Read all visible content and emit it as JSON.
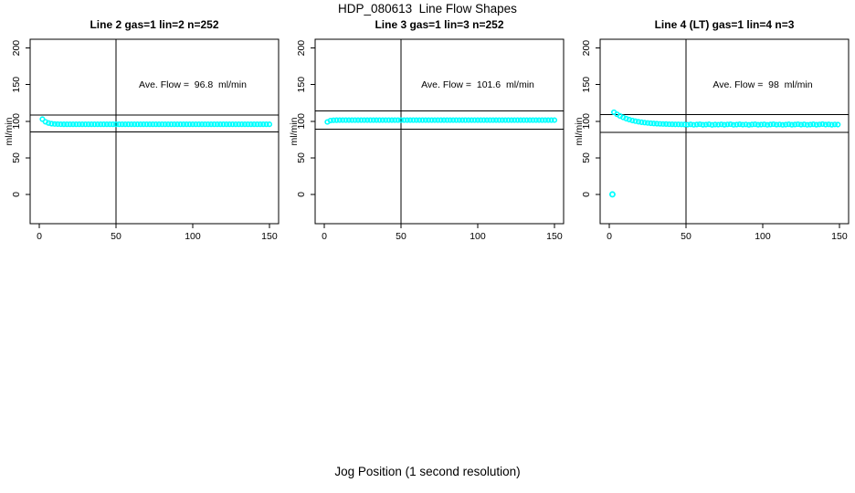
{
  "figure": {
    "title": "HDP_080613  Line Flow Shapes",
    "xlabel": "Jog Position (1 second resolution)",
    "background": "#ffffff",
    "point_color": "#00ffff",
    "axis_color": "#000000"
  },
  "chart_data": [
    {
      "type": "scatter",
      "title": "Line 2 gas=1 lin=2 n=252",
      "ylabel": "ml/min",
      "annotation": "Ave. Flow =  96.8  ml/min",
      "ave_flow": 96.8,
      "annotation_xy": [
        100,
        150
      ],
      "xlim": [
        -6,
        156
      ],
      "ylim": [
        -40,
        212
      ],
      "xticks": [
        0,
        50,
        100,
        150
      ],
      "yticks": [
        0,
        50,
        100,
        150,
        200
      ],
      "vline_x": 50,
      "ref_lines_y": [
        108.4,
        85.2
      ],
      "x": [
        2,
        4,
        6,
        8,
        10,
        12,
        14,
        16,
        18,
        20,
        22,
        24,
        26,
        28,
        30,
        32,
        34,
        36,
        38,
        40,
        42,
        44,
        46,
        48,
        50,
        52,
        54,
        56,
        58,
        60,
        62,
        64,
        66,
        68,
        70,
        72,
        74,
        76,
        78,
        80,
        82,
        84,
        86,
        88,
        90,
        92,
        94,
        96,
        98,
        100,
        102,
        104,
        106,
        108,
        110,
        112,
        114,
        116,
        118,
        120,
        122,
        124,
        126,
        128,
        130,
        132,
        134,
        136,
        138,
        140,
        142,
        144,
        146,
        148,
        150
      ],
      "y": [
        102.8,
        99.2,
        97.5,
        96.6,
        96.2,
        96.0,
        95.9,
        95.8,
        95.8,
        95.8,
        95.8,
        95.8,
        95.8,
        95.8,
        95.8,
        95.8,
        95.8,
        95.8,
        95.8,
        95.8,
        95.8,
        95.8,
        95.8,
        95.8,
        95.8,
        95.8,
        95.8,
        95.8,
        95.8,
        95.8,
        95.8,
        95.8,
        95.8,
        95.8,
        95.8,
        95.8,
        95.8,
        95.8,
        95.8,
        95.8,
        95.8,
        95.8,
        95.8,
        95.8,
        95.8,
        95.8,
        95.8,
        95.8,
        95.8,
        95.8,
        95.8,
        95.8,
        95.8,
        95.8,
        95.8,
        95.8,
        95.8,
        95.8,
        95.8,
        95.8,
        95.8,
        95.8,
        95.8,
        95.8,
        95.8,
        95.8,
        95.8,
        95.8,
        95.8,
        95.8,
        95.8,
        95.8,
        95.8,
        95.8,
        95.8
      ],
      "outliers": []
    },
    {
      "type": "scatter",
      "title": "Line 3 gas=1 lin=3 n=252",
      "ylabel": "ml/min",
      "annotation": "Ave. Flow =  101.6  ml/min",
      "ave_flow": 101.6,
      "annotation_xy": [
        100,
        150
      ],
      "xlim": [
        -6,
        156
      ],
      "ylim": [
        -40,
        212
      ],
      "xticks": [
        0,
        50,
        100,
        150
      ],
      "yticks": [
        0,
        50,
        100,
        150,
        200
      ],
      "vline_x": 50,
      "ref_lines_y": [
        113.8,
        89.4
      ],
      "x": [
        2,
        4,
        6,
        8,
        10,
        12,
        14,
        16,
        18,
        20,
        22,
        24,
        26,
        28,
        30,
        32,
        34,
        36,
        38,
        40,
        42,
        44,
        46,
        48,
        50,
        52,
        54,
        56,
        58,
        60,
        62,
        64,
        66,
        68,
        70,
        72,
        74,
        76,
        78,
        80,
        82,
        84,
        86,
        88,
        90,
        92,
        94,
        96,
        98,
        100,
        102,
        104,
        106,
        108,
        110,
        112,
        114,
        116,
        118,
        120,
        122,
        124,
        126,
        128,
        130,
        132,
        134,
        136,
        138,
        140,
        142,
        144,
        146,
        148,
        150
      ],
      "y": [
        99.0,
        100.9,
        101.3,
        101.4,
        101.5,
        101.5,
        101.5,
        101.5,
        101.5,
        101.5,
        101.5,
        101.5,
        101.5,
        101.5,
        101.5,
        101.5,
        101.5,
        101.5,
        101.5,
        101.5,
        101.5,
        101.5,
        101.5,
        101.5,
        101.5,
        101.5,
        101.5,
        101.5,
        101.5,
        101.5,
        101.5,
        101.5,
        101.5,
        101.5,
        101.5,
        101.5,
        101.5,
        101.5,
        101.5,
        101.5,
        101.5,
        101.5,
        101.5,
        101.5,
        101.5,
        101.5,
        101.5,
        101.5,
        101.5,
        101.5,
        101.5,
        101.5,
        101.5,
        101.5,
        101.5,
        101.5,
        101.5,
        101.5,
        101.5,
        101.5,
        101.5,
        101.5,
        101.5,
        101.5,
        101.5,
        101.5,
        101.5,
        101.5,
        101.5,
        101.5,
        101.5,
        101.5,
        101.5,
        101.5,
        101.5
      ],
      "outliers": []
    },
    {
      "type": "scatter",
      "title": "Line 4 (LT) gas=1 lin=4 n=3",
      "ylabel": "ml/min",
      "annotation": "Ave. Flow =  98  ml/min",
      "ave_flow": 98,
      "annotation_xy": [
        100,
        150
      ],
      "xlim": [
        -6,
        156
      ],
      "ylim": [
        -40,
        212
      ],
      "xticks": [
        0,
        50,
        100,
        150
      ],
      "yticks": [
        0,
        50,
        100,
        150,
        200
      ],
      "vline_x": 50,
      "ref_lines_y": [
        108.8,
        85.0
      ],
      "x": [
        3,
        5,
        7,
        9,
        11,
        13,
        15,
        17,
        19,
        21,
        23,
        25,
        27,
        29,
        31,
        33,
        35,
        37,
        39,
        41,
        43,
        45,
        47,
        49,
        51,
        53,
        55,
        57,
        59,
        61,
        63,
        65,
        67,
        69,
        71,
        73,
        75,
        77,
        79,
        81,
        83,
        85,
        87,
        89,
        91,
        93,
        95,
        97,
        99,
        101,
        103,
        105,
        107,
        109,
        111,
        113,
        115,
        117,
        119,
        121,
        123,
        125,
        127,
        129,
        131,
        133,
        135,
        137,
        139,
        141,
        143,
        145,
        147,
        149
      ],
      "y": [
        112.3,
        109.5,
        107.1,
        105.2,
        103.5,
        102.2,
        101.0,
        100.1,
        99.3,
        98.6,
        98.1,
        97.6,
        97.2,
        96.9,
        96.6,
        96.4,
        96.2,
        96.1,
        95.9,
        95.8,
        95.7,
        95.7,
        95.6,
        95.5,
        95.3,
        95.7,
        95.1,
        95.5,
        95.9,
        95.2,
        95.4,
        95.8,
        95.0,
        95.5,
        95.3,
        95.7,
        95.2,
        95.6,
        95.9,
        95.1,
        95.4,
        95.8,
        95.3,
        95.6,
        95.0,
        95.5,
        95.8,
        95.2,
        95.4,
        95.7,
        95.1,
        95.5,
        95.9,
        95.3,
        95.6,
        95.1,
        95.4,
        95.8,
        95.2,
        95.5,
        95.9,
        95.3,
        95.7,
        95.1,
        95.4,
        95.8,
        95.2,
        95.6,
        96.0,
        95.4,
        95.7,
        95.2,
        95.6,
        95.4
      ],
      "outliers": [
        [
          2,
          0
        ]
      ]
    }
  ]
}
